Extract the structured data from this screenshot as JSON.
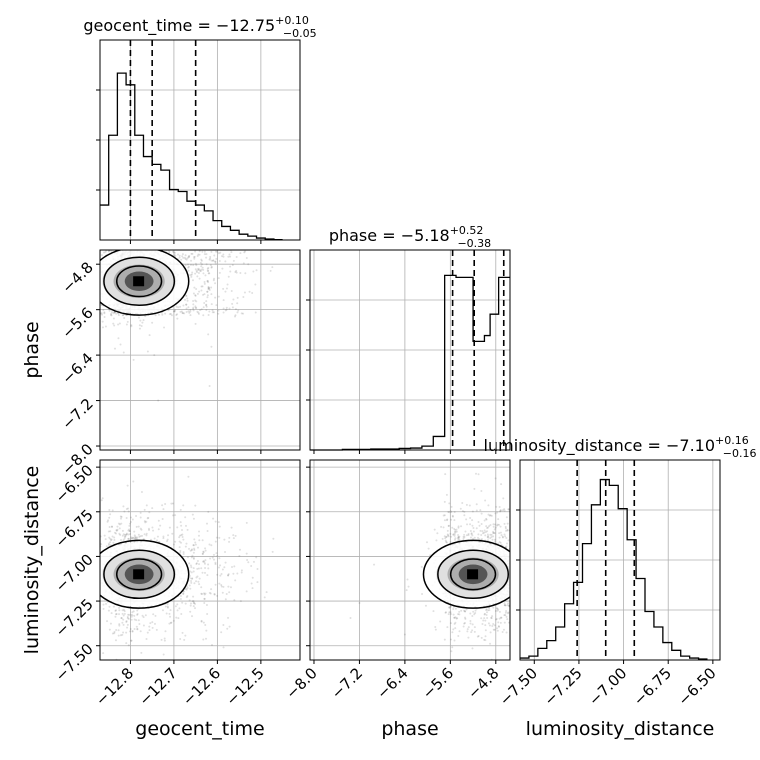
{
  "chart_data": {
    "type": "corner",
    "parameters": [
      "geocent_time",
      "phase",
      "luminosity_distance"
    ],
    "titles": [
      {
        "param": "geocent_time",
        "text": "geocent_time = −12.75",
        "plus": "+0.10",
        "minus": "−0.05"
      },
      {
        "param": "phase",
        "text": "phase = −5.18",
        "plus": "+0.52",
        "minus": "−0.38"
      },
      {
        "param": "luminosity_distance",
        "text": "luminosity_distance = −7.10",
        "plus": "+0.16",
        "minus": "−0.16"
      }
    ],
    "axis_ranges": {
      "geocent_time": [
        -12.87,
        -12.41
      ],
      "phase": [
        -8.07,
        -4.55
      ],
      "luminosity_distance": [
        -7.58,
        -6.46
      ]
    },
    "ticks": {
      "geocent_time": [
        -12.8,
        -12.7,
        -12.6,
        -12.5
      ],
      "phase": [
        -8.0,
        -7.2,
        -6.4,
        -5.6,
        -4.8
      ],
      "luminosity_distance": [
        -7.5,
        -7.25,
        -7.0,
        -6.75,
        -6.5
      ]
    },
    "tick_labels": {
      "geocent_time": [
        "−12.8",
        "−12.7",
        "−12.6",
        "−12.5"
      ],
      "phase": [
        "−8.0",
        "−7.2",
        "−6.4",
        "−5.6",
        "−4.8"
      ],
      "luminosity_distance": [
        "−7.50",
        "−7.25",
        "−7.00",
        "−6.75",
        "−6.50"
      ]
    },
    "quantiles": {
      "geocent_time": [
        -12.8,
        -12.75,
        -12.65
      ],
      "phase": [
        -5.56,
        -5.18,
        -4.66
      ],
      "luminosity_distance": [
        -7.26,
        -7.1,
        -6.94
      ]
    },
    "histograms": {
      "geocent_time": {
        "edges": [
          -12.87,
          -12.85,
          -12.83,
          -12.81,
          -12.79,
          -12.77,
          -12.75,
          -12.73,
          -12.71,
          -12.69,
          -12.67,
          -12.65,
          -12.63,
          -12.61,
          -12.59,
          -12.57,
          -12.55,
          -12.53,
          -12.51,
          -12.49,
          -12.47,
          -12.45
        ],
        "counts": [
          0.18,
          0.54,
          0.86,
          0.8,
          0.54,
          0.43,
          0.39,
          0.36,
          0.26,
          0.25,
          0.2,
          0.18,
          0.15,
          0.1,
          0.07,
          0.05,
          0.03,
          0.02,
          0.01,
          0.005,
          0.002
        ]
      },
      "phase": {
        "edges": [
          -8.07,
          -7.5,
          -7.0,
          -6.5,
          -6.3,
          -6.1,
          -5.9,
          -5.7,
          -5.5,
          -5.2,
          -5.0,
          -4.9,
          -4.75,
          -4.55
        ],
        "counts": [
          0.0,
          0.003,
          0.005,
          0.008,
          0.01,
          0.02,
          0.07,
          0.9,
          0.89,
          0.56,
          0.59,
          0.7,
          0.89
        ]
      },
      "luminosity_distance": {
        "edges": [
          -7.58,
          -7.53,
          -7.48,
          -7.43,
          -7.38,
          -7.33,
          -7.28,
          -7.23,
          -7.18,
          -7.13,
          -7.08,
          -7.03,
          -6.98,
          -6.93,
          -6.88,
          -6.83,
          -6.78,
          -6.73,
          -6.68,
          -6.63,
          -6.58,
          -6.53
        ],
        "counts": [
          0.01,
          0.02,
          0.06,
          0.1,
          0.17,
          0.29,
          0.4,
          0.6,
          0.8,
          0.93,
          0.9,
          0.78,
          0.62,
          0.42,
          0.25,
          0.17,
          0.09,
          0.05,
          0.02,
          0.01,
          0.005
        ]
      }
    },
    "histogram_ylim": [
      0,
      1
    ],
    "contour_levels": [
      "0.12",
      "0.27",
      "0.47"
    ],
    "grid": true,
    "line_color": "#000000",
    "scatter_color": "#555555",
    "density_peak_color": "#000000"
  }
}
